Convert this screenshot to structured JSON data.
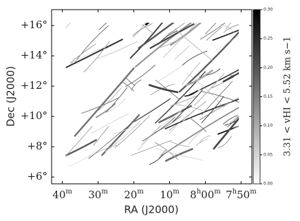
{
  "chart_data": {
    "type": "image",
    "xlabel": "RA (J2000)",
    "ylabel": "Dec (J2000)",
    "xlim": [
      523,
      467
    ],
    "ylim": [
      5.55,
      17.05
    ],
    "xticks": [
      {
        "value": 520,
        "label": "40m"
      },
      {
        "value": 510,
        "label": "30m"
      },
      {
        "value": 500,
        "label": "20m"
      },
      {
        "value": 490,
        "label": "10m"
      },
      {
        "value": 480,
        "label": "8h00m"
      },
      {
        "value": 470,
        "label": "7h50m"
      }
    ],
    "yticks": [
      {
        "value": 16,
        "label": "+16°"
      },
      {
        "value": 14,
        "label": "+14°"
      },
      {
        "value": 12,
        "label": "+12°"
      },
      {
        "value": 10,
        "label": "+10°"
      },
      {
        "value": 8,
        "label": "+8°"
      },
      {
        "value": 6,
        "label": "+6°"
      }
    ],
    "colorbar": {
      "label": "3.31 < vHI < 5.52 km s−1",
      "lim": [
        0,
        0.3
      ],
      "colors": [
        "#ffffff",
        "#000000"
      ],
      "ticks": [
        {
          "value": 0,
          "label": "0.00"
        },
        {
          "value": 0.05,
          "label": "0.05"
        },
        {
          "value": 0.1,
          "label": "0.10"
        },
        {
          "value": 0.15,
          "label": "0.15"
        },
        {
          "value": 0.2,
          "label": "0.20"
        },
        {
          "value": 0.25,
          "label": "0.25"
        },
        {
          "value": 0.3,
          "label": "0.30"
        }
      ]
    }
  }
}
